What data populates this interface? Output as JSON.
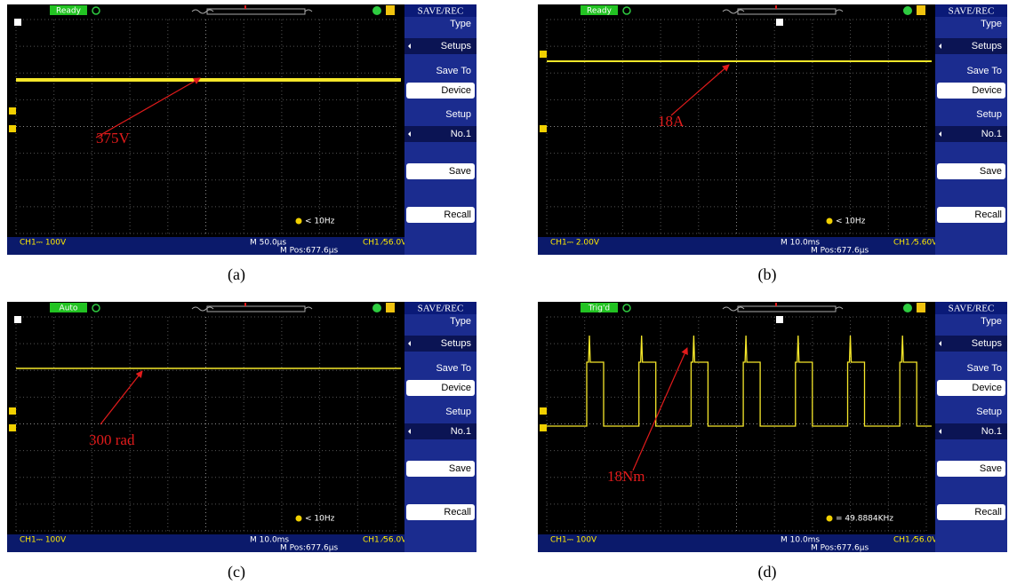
{
  "panels": [
    {
      "caption": "(a)",
      "status": "Ready",
      "menu_title": "SAVE/REC",
      "menu": [
        "Type",
        "Setups",
        "Save To",
        "Device",
        "Setup",
        "No.1",
        "Save",
        "Recall"
      ],
      "frequency": "< 10Hz",
      "channel": "CH1⎓ 100V",
      "timebase": "M 50.0μs",
      "position": "M Pos:677.6μs",
      "trigger": "CH1 ⁄56.0V",
      "annotation": "375V"
    },
    {
      "caption": "(b)",
      "status": "Ready",
      "menu_title": "SAVE/REC",
      "menu": [
        "Type",
        "Setups",
        "Save To",
        "Device",
        "Setup",
        "No.1",
        "Save",
        "Recall"
      ],
      "frequency": "< 10Hz",
      "channel": "CH1⎓ 2.00V",
      "timebase": "M 10.0ms",
      "position": "M Pos:677.6μs",
      "trigger": "CH1 ⁄5.60V",
      "annotation": "18A"
    },
    {
      "caption": "(c)",
      "status": "Auto",
      "menu_title": "SAVE/REC",
      "menu": [
        "Type",
        "Setups",
        "Save To",
        "Device",
        "Setup",
        "No.1",
        "Save",
        "Recall"
      ],
      "frequency": "< 10Hz",
      "channel": "CH1⎓ 100V",
      "timebase": "M 10.0ms",
      "position": "M Pos:677.6μs",
      "trigger": "CH1 ⁄56.0V",
      "annotation": "300 rad"
    },
    {
      "caption": "(d)",
      "status": "Trig'd",
      "menu_title": "SAVE/REC",
      "menu": [
        "Type",
        "Setups",
        "Save To",
        "Device",
        "Setup",
        "No.1",
        "Save",
        "Recall"
      ],
      "frequency": "= 49.8884KHz",
      "channel": "CH1⎓ 100V",
      "timebase": "M 10.0ms",
      "position": "M Pos:677.6μs",
      "trigger": "CH1 ⁄56.0V",
      "annotation": "18Nm"
    }
  ]
}
